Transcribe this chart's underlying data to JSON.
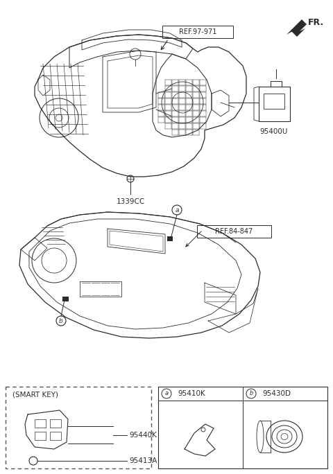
{
  "bg_color": "#ffffff",
  "fr_label": "FR.",
  "ref1_label": "REF.97-971",
  "ref2_label": "REF.84-847",
  "label_1339CC": "1339CC",
  "label_95400U": "95400U",
  "label_95440K": "95440K",
  "label_95413A": "95413A",
  "label_smart_key": "(SMART KEY)",
  "label_95410K": "95410K",
  "label_95430D": "95430D",
  "label_a": "a",
  "label_b": "b",
  "line_color": "#2a2a2a",
  "dashed_color": "#555555",
  "figw": 4.8,
  "figh": 6.84,
  "dpi": 100
}
